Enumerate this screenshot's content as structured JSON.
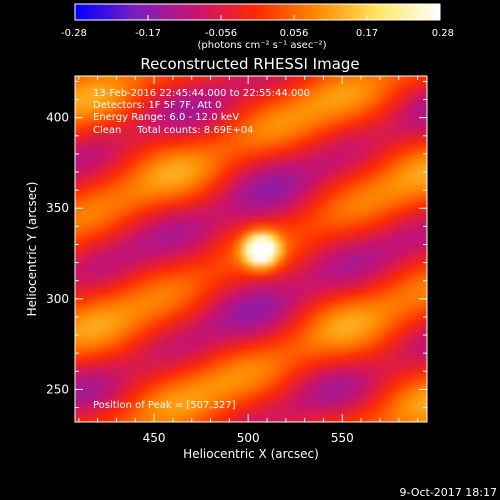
{
  "colorbar": {
    "ticks": [
      "-0.28",
      "-0.17",
      "-0.056",
      "0.056",
      "0.17",
      "0.28"
    ],
    "unit_label": "(photons cm⁻² s⁻¹ asec⁻²)",
    "colors": [
      "#0000ff",
      "#7a1fbf",
      "#c81470",
      "#ff2a00",
      "#ff8c00",
      "#ffe866",
      "#ffffff"
    ]
  },
  "chart_data": {
    "type": "heatmap",
    "title": "Reconstructed RHESSI Image",
    "xlabel": "Heliocentric X (arcsec)",
    "ylabel": "Heliocentric Y (arcsec)",
    "xlim": [
      408,
      595
    ],
    "ylim": [
      232,
      423
    ],
    "xticks": [
      450,
      500,
      550
    ],
    "yticks": [
      250,
      300,
      350,
      400
    ],
    "peak": [
      507,
      327
    ],
    "annotations": [
      "13-Feb-2016 22:45:44.000 to 22:55:44.000",
      "Detectors: 1F 5F 7F, Att 0",
      "Energy Range: 6.0 - 12.0 keV",
      "Clean     Total counts: 8.69E+04",
      "Position of Peak = [507,327]"
    ]
  },
  "footer": {
    "date": "9-Oct-2017 18:17"
  }
}
